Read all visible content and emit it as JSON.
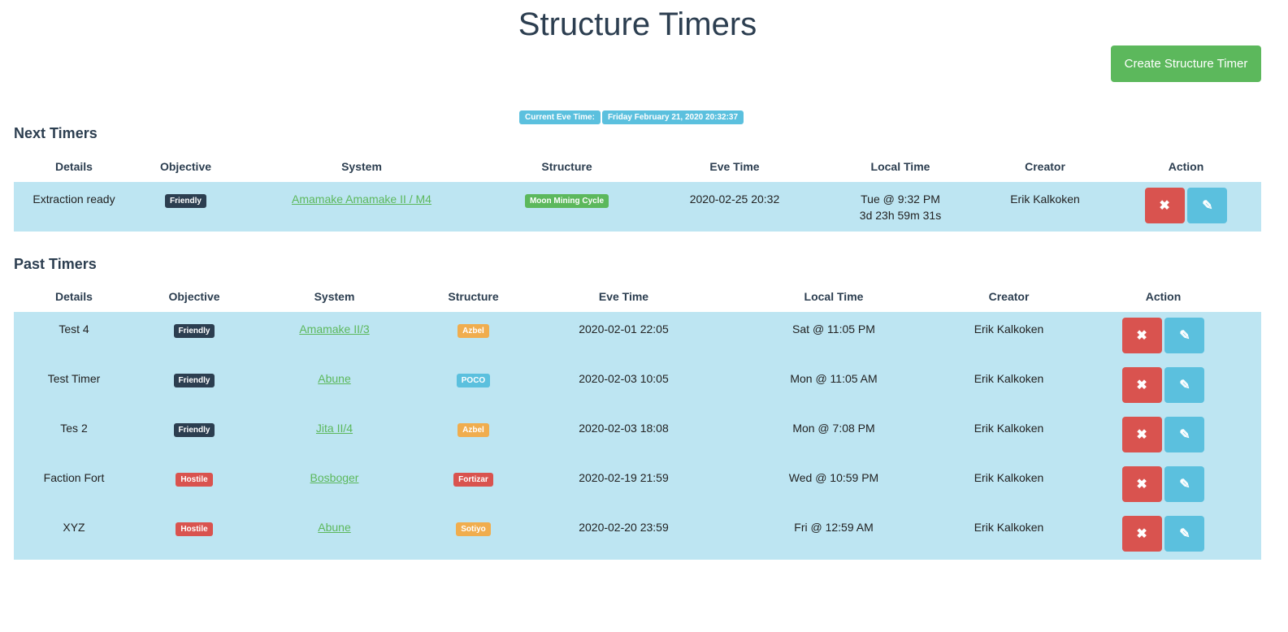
{
  "title": "Structure Timers",
  "create_label": "Create Structure Timer",
  "eve_time": {
    "label": "Current Eve Time:",
    "value": "Friday February 21, 2020 20:32:37"
  },
  "colors": {
    "friendly": "#2c3e50",
    "hostile": "#d9534f",
    "azbel": "#f0ad4e",
    "poco": "#5bc0de",
    "fortizar": "#d9534f",
    "sotiyo": "#f0ad4e",
    "moon": "#5cb85c"
  },
  "next": {
    "heading": "Next Timers",
    "columns": [
      "Details",
      "Objective",
      "System",
      "Structure",
      "Eve Time",
      "Local Time",
      "Creator",
      "Action"
    ],
    "rows": [
      {
        "details": "Extraction ready",
        "objective": "Friendly",
        "system": "Amamake Amamake II / M4",
        "structure": "Moon Mining Cycle",
        "eve": "2020-02-25 20:32",
        "local": "Tue @ 9:32 PM",
        "countdown": "3d 23h 59m 31s",
        "creator": "Erik Kalkoken"
      }
    ]
  },
  "past": {
    "heading": "Past Timers",
    "columns": [
      "Details",
      "Objective",
      "System",
      "Structure",
      "Eve Time",
      "Local Time",
      "Creator",
      "Action"
    ],
    "rows": [
      {
        "details": "Test 4",
        "objective": "Friendly",
        "system": "Amamake II/3",
        "structure": "Azbel",
        "eve": "2020-02-01 22:05",
        "local": "Sat @ 11:05 PM",
        "creator": "Erik Kalkoken"
      },
      {
        "details": "Test Timer",
        "objective": "Friendly",
        "system": "Abune",
        "structure": "POCO",
        "eve": "2020-02-03 10:05",
        "local": "Mon @ 11:05 AM",
        "creator": "Erik Kalkoken"
      },
      {
        "details": "Tes 2",
        "objective": "Friendly",
        "system": "Jita II/4",
        "structure": "Azbel",
        "eve": "2020-02-03 18:08",
        "local": "Mon @ 7:08 PM",
        "creator": "Erik Kalkoken"
      },
      {
        "details": "Faction Fort",
        "objective": "Hostile",
        "system": "Bosboger",
        "structure": "Fortizar",
        "eve": "2020-02-19 21:59",
        "local": "Wed @ 10:59 PM",
        "creator": "Erik Kalkoken"
      },
      {
        "details": "XYZ",
        "objective": "Hostile",
        "system": "Abune",
        "structure": "Sotiyo",
        "eve": "2020-02-20 23:59",
        "local": "Fri @ 12:59 AM",
        "creator": "Erik Kalkoken"
      }
    ]
  }
}
